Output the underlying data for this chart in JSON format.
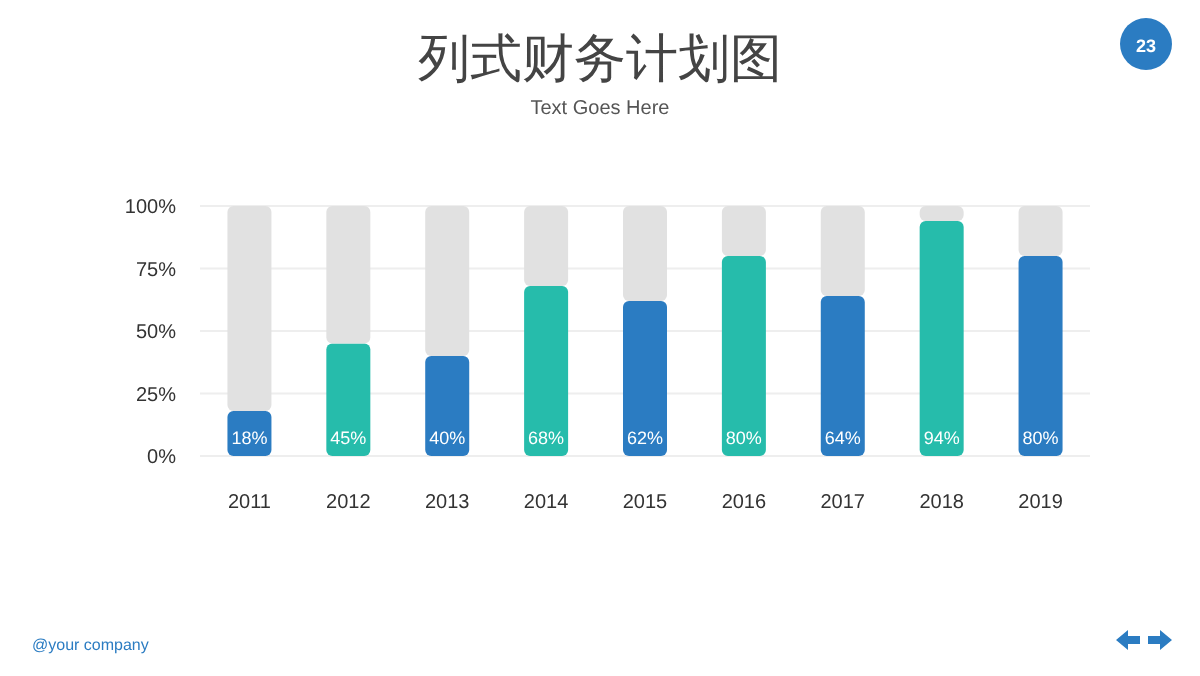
{
  "chart_data": {
    "type": "bar",
    "title": "列式财务计划图",
    "subtitle": "Text Goes Here",
    "categories": [
      "2011",
      "2012",
      "2013",
      "2014",
      "2015",
      "2016",
      "2017",
      "2018",
      "2019"
    ],
    "stacked": true,
    "series": [
      {
        "colors": [
          "#2b7cc2",
          "#26bcab",
          "#2b7cc2",
          "#26bcab",
          "#2b7cc2",
          "#26bcab",
          "#2b7cc2",
          "#26bcab",
          "#2b7cc2"
        ],
        "values": [
          18,
          45,
          40,
          68,
          62,
          80,
          64,
          94,
          80
        ],
        "value_labels": [
          "18%",
          "45%",
          "40%",
          "68%",
          "62%",
          "80%",
          "64%",
          "94%",
          "80%"
        ]
      },
      {
        "color": "#e1e1e1",
        "values": [
          82,
          55,
          60,
          32,
          38,
          20,
          36,
          6,
          20
        ]
      }
    ],
    "ylim": [
      0,
      100
    ],
    "yticks": [
      {
        "value": 0,
        "label": "0%"
      },
      {
        "value": 25,
        "label": "25%"
      },
      {
        "value": 50,
        "label": "50%"
      },
      {
        "value": 75,
        "label": "75%"
      },
      {
        "value": 100,
        "label": "100%"
      }
    ],
    "grid": "y",
    "annotations": [
      "23",
      "@your company"
    ]
  }
}
